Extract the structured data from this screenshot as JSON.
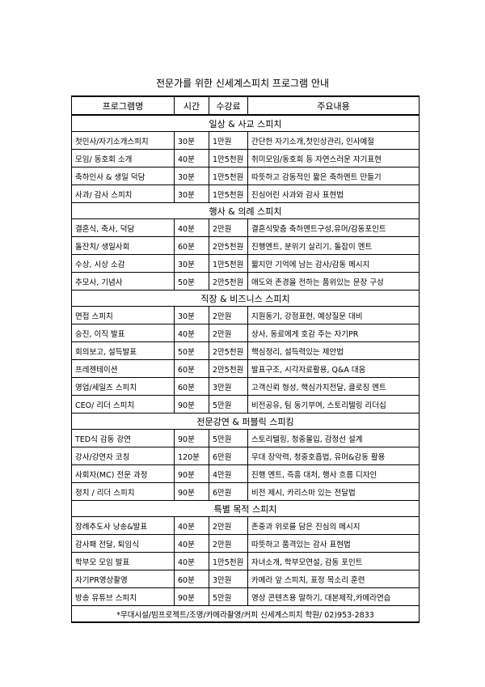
{
  "title": "전문가를 위한 신세계스피치 프로그램 안내",
  "table": {
    "header": [
      "프로그램명",
      "시간",
      "수강료",
      "주요내용"
    ],
    "sections": [
      {
        "title": "일상 & 사교 스피치",
        "rows": [
          [
            "첫인사/자기소개스피치",
            "30분",
            "1만원",
            "간단한 자기소개,첫인상관리, 인사예절"
          ],
          [
            "모임/ 동호회 소개",
            "40분",
            "1만5천원",
            "취미모임/동호회 등 자연스러운 자기표현"
          ],
          [
            "축하인사 & 생일 덕담",
            "30분",
            "1만5천원",
            "따뜻하고 감동적인 짧은 축하멘트 만들기"
          ],
          [
            "사과/ 감사 스피치",
            "30분",
            "1만5천원",
            "진심어린 사과와 감사 표현법"
          ]
        ]
      },
      {
        "title": "행사 & 의례 스피치",
        "rows": [
          [
            "결혼식, 축사, 덕담",
            "40분",
            "2만원",
            "결혼식맞춤 축하멘트구성,유머/감동포인트"
          ],
          [
            "돌잔치/ 생일사회",
            "60분",
            "2만5천원",
            "진행멘트, 분위기 살리기, 돌잡이 멘트"
          ],
          [
            "수상, 시상 소감",
            "30분",
            "1만5천원",
            "짧지만 기억에 남는 감사/감동 메시지"
          ],
          [
            "추모사, 기념사",
            "50분",
            "2만5천원",
            "애도와 존경을 전하는 품위있는 문장 구성"
          ]
        ]
      },
      {
        "title": "직장 & 비즈니스 스피치",
        "rows": [
          [
            "면접 스피치",
            "30분",
            "2만원",
            "지원동기, 강점표현, 예상질문 대비"
          ],
          [
            "승진, 이직 발표",
            "40분",
            "2만원",
            "상사, 동료에게 호감 주는 자기PR"
          ],
          [
            "회의보고, 설득발표",
            "50분",
            "2만5천원",
            "핵심정리, 설득력있는 제안법"
          ],
          [
            "프레젠테이션",
            "60분",
            "2만5천원",
            "발표구조, 시각자료활용, Q&A 대응"
          ],
          [
            "영업/세일즈 스피치",
            "60분",
            "3만원",
            "고객신뢰 형성, 핵심가치전달, 클로징 멘트"
          ],
          [
            "CEO/ 리더 스피치",
            "90분",
            "5만원",
            "비전공유, 팀 동기부여, 스토리텔링 리더십"
          ]
        ]
      },
      {
        "title": "전문강연 & 퍼블릭 스피킹",
        "rows": [
          [
            "TED식 감동 강연",
            "90분",
            "5만원",
            "스토리텔링, 청중몰입, 감정선 설계"
          ],
          [
            "강사/강연자 코칭",
            "120분",
            "6만원",
            "무대 장악력, 청중호흡법, 유머&감동 활용"
          ],
          [
            "사회자(MC) 전문 과정",
            "90분",
            "4만원",
            "진행 멘트, 즉흥 대처, 행사 흐름 디자인"
          ],
          [
            "정치 / 리더 스피치",
            "90분",
            "6만원",
            "비전 제시, 카리스마 있는 전달법"
          ]
        ]
      },
      {
        "title": "특별 목적 스피치",
        "rows": [
          [
            "장례추도사 낭송&발표",
            "40분",
            "2만원",
            "존중과 위로를 담은 진심의 메시지"
          ],
          [
            "감사패 전달, 퇴임식",
            "40분",
            "2만원",
            "따뜻하고 품격있는 감사 표현법"
          ],
          [
            "학부모 모임 발표",
            "40분",
            "1만5천원",
            "자녀소개, 학부모연설, 감동 포인트"
          ],
          [
            "자기PR영상촬영",
            "60분",
            "3만원",
            "카메라 앞 스피치, 표정 목소리 훈련"
          ],
          [
            "방송 유튜브 스피치",
            "90분",
            "5만원",
            "영상 콘텐츠용 말하기, 대본제작,카메라연습"
          ]
        ]
      }
    ],
    "footer": "*무대시설/빔프로젝트/조명/카메라촬영/커피  신세계스피치 학원/ 02)953-2833"
  }
}
